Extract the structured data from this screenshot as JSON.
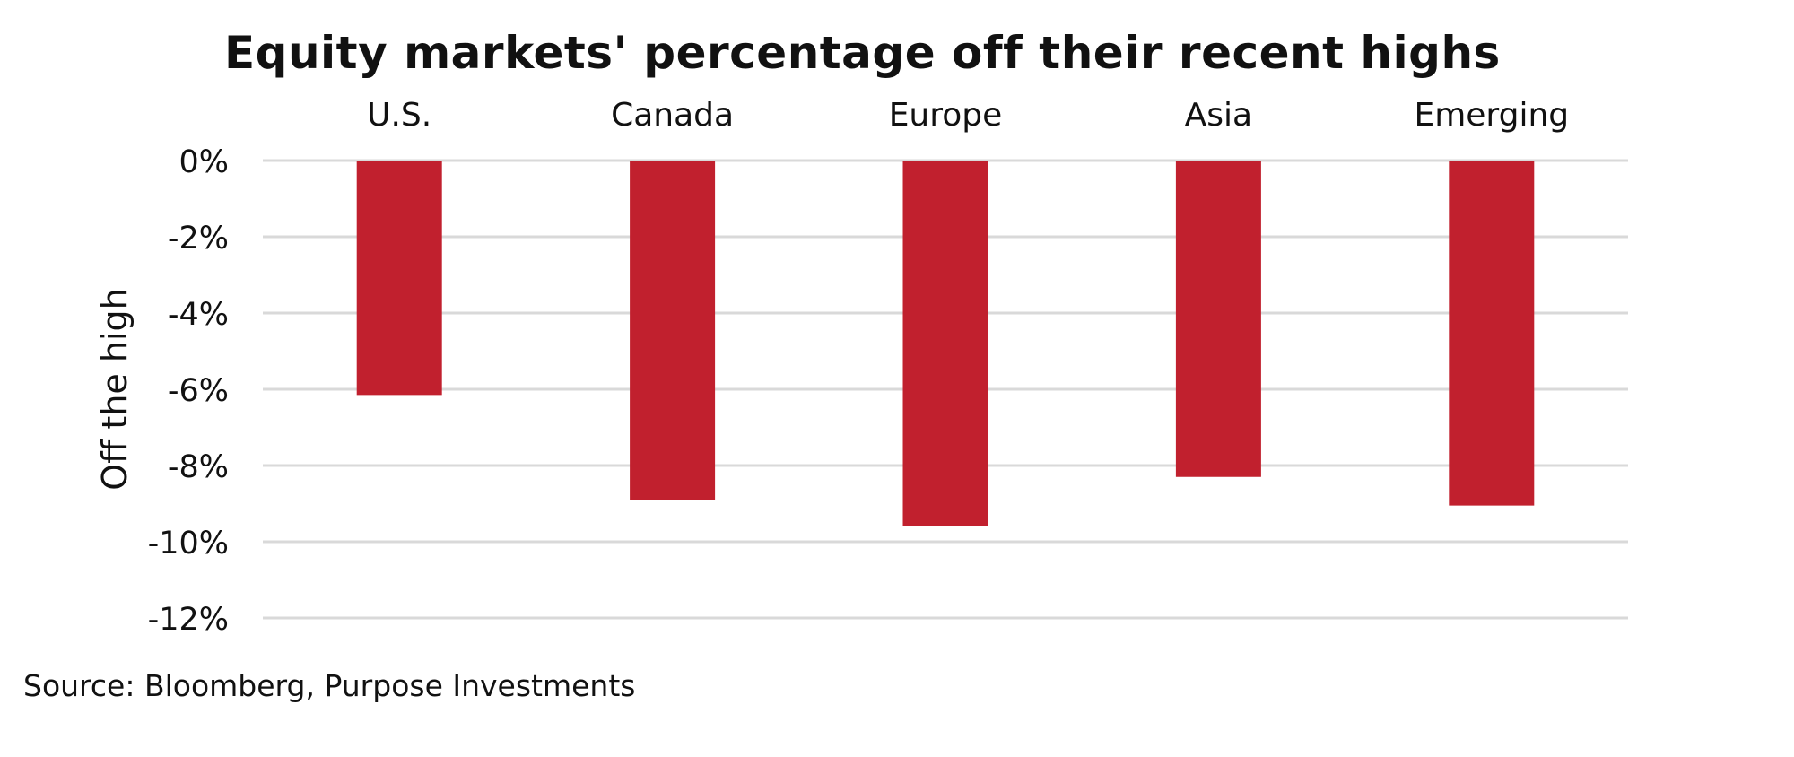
{
  "chart_data": {
    "type": "bar",
    "title": "Equity markets' percentage off their recent highs",
    "categories": [
      "U.S.",
      "Canada",
      "Europe",
      "Asia",
      "Emerging"
    ],
    "values": [
      -6.15,
      -8.9,
      -9.6,
      -8.3,
      -9.05
    ],
    "xlabel": "",
    "ylabel": "Off the high",
    "ylim": [
      -12,
      0
    ],
    "yticks": [
      0,
      -2,
      -4,
      -6,
      -8,
      -10,
      -12
    ],
    "ytick_labels": [
      "0%",
      "-2%",
      "-4%",
      "-6%",
      "-8%",
      "-10%",
      "-12%"
    ],
    "category_axis_position": "top",
    "grid": true,
    "bar_color": "#C1202E",
    "grid_color": "#D9D9D9"
  },
  "source": "Source: Bloomberg, Purpose Investments"
}
